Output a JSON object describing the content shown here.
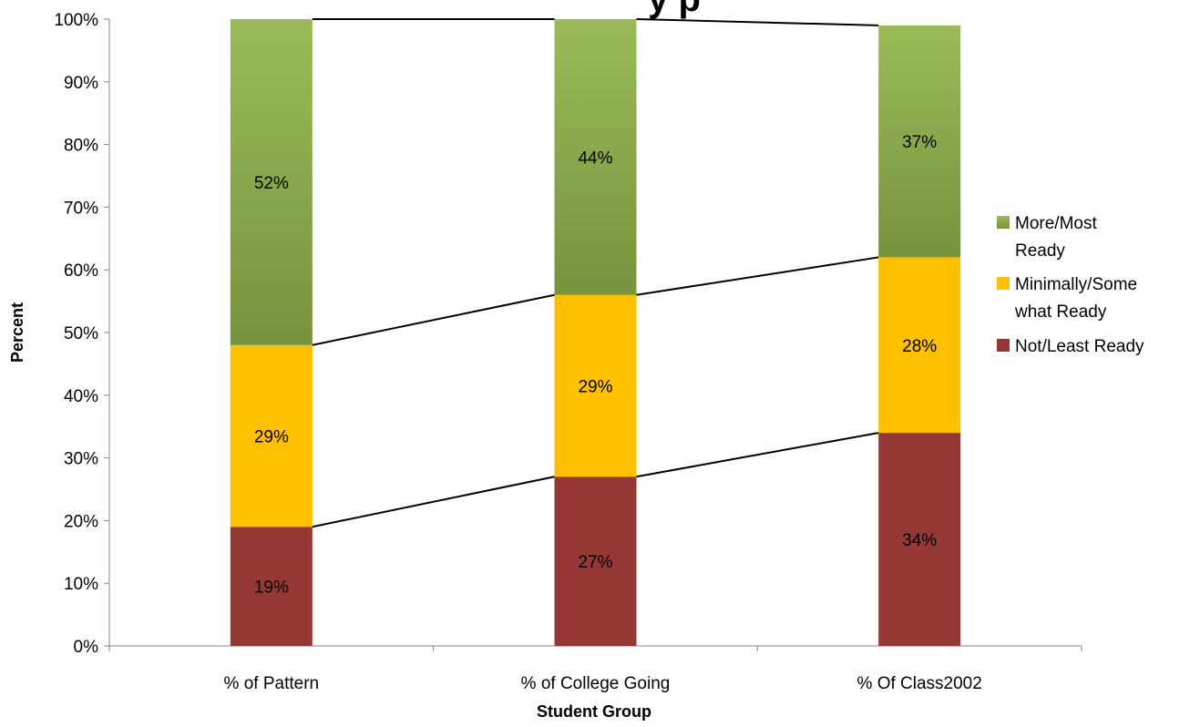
{
  "chart_data": {
    "type": "bar",
    "stacked": true,
    "title": "y  p",
    "xlabel": "Student Group",
    "ylabel": "Percent",
    "ylim": [
      0,
      100
    ],
    "yticks": [
      "0%",
      "10%",
      "20%",
      "30%",
      "40%",
      "50%",
      "60%",
      "70%",
      "80%",
      "90%",
      "100%"
    ],
    "categories": [
      "% of Pattern",
      "% of College Going",
      "% Of Class2002"
    ],
    "series": [
      {
        "name": "Not/Least Ready",
        "values": [
          19,
          27,
          34
        ],
        "labels": [
          "19%",
          "27%",
          "34%"
        ],
        "color": "#953735"
      },
      {
        "name": "Minimally/Somewhat Ready",
        "values": [
          29,
          29,
          28
        ],
        "labels": [
          "29%",
          "29%",
          "28%"
        ],
        "color": "#FFC000"
      },
      {
        "name": "More/Most Ready",
        "values": [
          52,
          44,
          37
        ],
        "labels": [
          "52%",
          "44%",
          "37%"
        ],
        "color": "#9BBB59",
        "color_dark": "#77933C"
      }
    ],
    "legend": {
      "position": "right",
      "entries": [
        {
          "lines": [
            "More/Most",
            "Ready"
          ],
          "color": "#9BBB59"
        },
        {
          "lines": [
            "Minimally/Some",
            "what Ready"
          ],
          "color": "#FFC000"
        },
        {
          "lines": [
            "Not/Least Ready"
          ],
          "color": "#953735"
        }
      ]
    },
    "series_lines": true,
    "grid": false
  }
}
